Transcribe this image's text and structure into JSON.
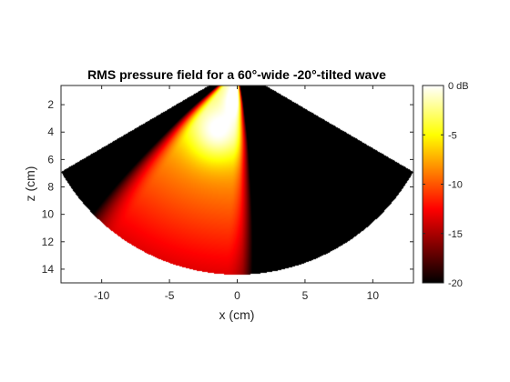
{
  "chart_data": {
    "type": "heatmap",
    "title": "RMS pressure field for a 60°-wide -20°-tilted wave",
    "xlabel": "x (cm)",
    "ylabel": "z (cm)",
    "xlim": [
      -13,
      13
    ],
    "ylim": [
      0.6,
      15
    ],
    "y_reversed": true,
    "xticks": [
      -10,
      -5,
      0,
      5,
      10
    ],
    "xtick_labels": [
      "-10",
      "-5",
      "0",
      "5",
      "10"
    ],
    "yticks": [
      2,
      4,
      6,
      8,
      10,
      12,
      14
    ],
    "ytick_labels": [
      "2",
      "4",
      "6",
      "8",
      "10",
      "12",
      "14"
    ],
    "grid": false,
    "field": {
      "shape": "sector",
      "sector_half_angle_deg": 60,
      "sector_radius_cm": 15,
      "wave_width_deg": 60,
      "wave_tilt_deg": -20,
      "focus_cm": [
        -1.5,
        4
      ]
    },
    "colorbar": {
      "range_db": [
        -20,
        0
      ],
      "ticks": [
        0,
        -5,
        -10,
        -15,
        -20
      ],
      "tick_labels": [
        "0 dB",
        "-5",
        "-10",
        "-15",
        "-20"
      ],
      "colormap": "hot",
      "colormap_stops": [
        {
          "pos": 0.0,
          "color": "#000000"
        },
        {
          "pos": 0.375,
          "color": "#ff0000"
        },
        {
          "pos": 0.75,
          "color": "#ffff00"
        },
        {
          "pos": 1.0,
          "color": "#ffffff"
        }
      ]
    }
  }
}
